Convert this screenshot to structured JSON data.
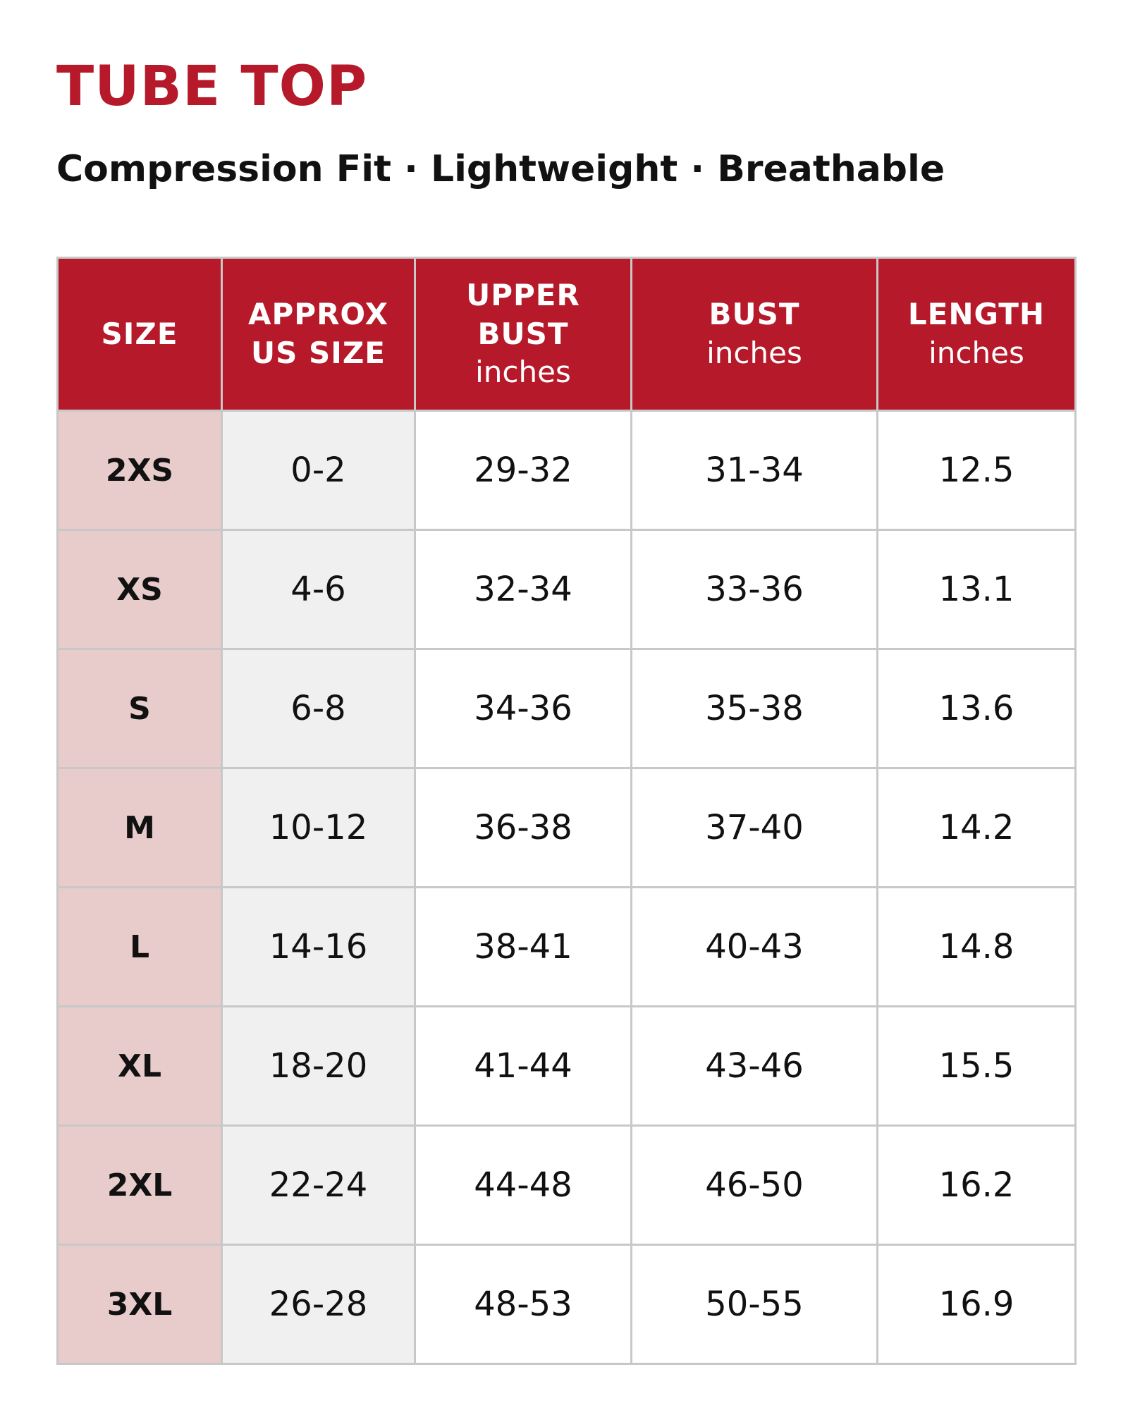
{
  "header": {
    "title": "TUBE TOP",
    "subtitle": "Compression Fit · Lightweight · Breathable"
  },
  "table": {
    "columns": [
      {
        "label": "SIZE"
      },
      {
        "label": "APPROX US SIZE"
      },
      {
        "label": "UPPER BUST",
        "unit": "inches"
      },
      {
        "label": "BUST",
        "unit": "inches"
      },
      {
        "label": "LENGTH",
        "unit": "inches"
      }
    ],
    "rows": [
      [
        "2XS",
        "0-2",
        "29-32",
        "31-34",
        "12.5"
      ],
      [
        "XS",
        "4-6",
        "32-34",
        "33-36",
        "13.1"
      ],
      [
        "S",
        "6-8",
        "34-36",
        "35-38",
        "13.6"
      ],
      [
        "M",
        "10-12",
        "36-38",
        "37-40",
        "14.2"
      ],
      [
        "L",
        "14-16",
        "38-41",
        "40-43",
        "14.8"
      ],
      [
        "XL",
        "18-20",
        "41-44",
        "43-46",
        "15.5"
      ],
      [
        "2XL",
        "22-24",
        "44-48",
        "46-50",
        "16.2"
      ],
      [
        "3XL",
        "26-28",
        "48-53",
        "50-55",
        "16.9"
      ]
    ]
  }
}
